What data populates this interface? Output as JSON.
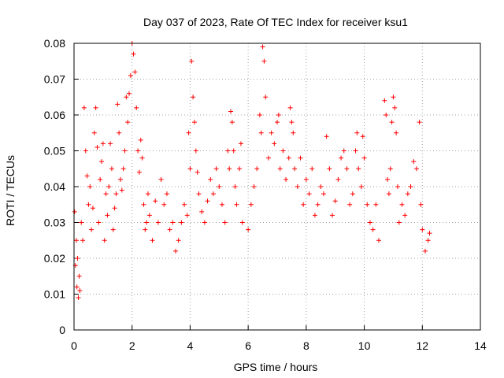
{
  "chart_data": {
    "type": "scatter",
    "title": "Day 037 of 2023, Rate Of TEC Index for receiver ksu1",
    "xlabel": "GPS time / hours",
    "ylabel": "ROTI / TECUs",
    "xlim": [
      0,
      14
    ],
    "ylim": [
      0,
      0.08
    ],
    "grid": true,
    "marker": "+",
    "x_ticks": [
      "0",
      "2",
      "4",
      "6",
      "8",
      "10",
      "12",
      "14"
    ],
    "y_ticks": [
      "0",
      "0.01",
      "0.02",
      "0.03",
      "0.04",
      "0.05",
      "0.06",
      "0.07",
      "0.08"
    ],
    "x_tick_values": [
      0,
      2,
      4,
      6,
      8,
      10,
      12,
      14
    ],
    "y_tick_values": [
      0,
      0.01,
      0.02,
      0.03,
      0.04,
      0.05,
      0.06,
      0.07,
      0.08
    ],
    "series": [
      {
        "color": "#ff0000",
        "points": [
          [
            0.02,
            0.033
          ],
          [
            0.05,
            0.018
          ],
          [
            0.08,
            0.025
          ],
          [
            0.1,
            0.012
          ],
          [
            0.12,
            0.02
          ],
          [
            0.15,
            0.009
          ],
          [
            0.18,
            0.015
          ],
          [
            0.2,
            0.011
          ],
          [
            0.25,
            0.03
          ],
          [
            0.3,
            0.025
          ],
          [
            0.35,
            0.062
          ],
          [
            0.4,
            0.05
          ],
          [
            0.45,
            0.043
          ],
          [
            0.5,
            0.035
          ],
          [
            0.55,
            0.04
          ],
          [
            0.6,
            0.028
          ],
          [
            0.65,
            0.034
          ],
          [
            0.7,
            0.055
          ],
          [
            0.75,
            0.062
          ],
          [
            0.8,
            0.051
          ],
          [
            0.85,
            0.03
          ],
          [
            0.9,
            0.042
          ],
          [
            0.95,
            0.047
          ],
          [
            1.0,
            0.052
          ],
          [
            1.05,
            0.025
          ],
          [
            1.1,
            0.038
          ],
          [
            1.15,
            0.032
          ],
          [
            1.2,
            0.04
          ],
          [
            1.25,
            0.052
          ],
          [
            1.3,
            0.045
          ],
          [
            1.35,
            0.028
          ],
          [
            1.4,
            0.034
          ],
          [
            1.45,
            0.038
          ],
          [
            1.5,
            0.063
          ],
          [
            1.55,
            0.055
          ],
          [
            1.6,
            0.042
          ],
          [
            1.65,
            0.039
          ],
          [
            1.7,
            0.045
          ],
          [
            1.75,
            0.05
          ],
          [
            1.8,
            0.065
          ],
          [
            1.85,
            0.058
          ],
          [
            1.9,
            0.066
          ],
          [
            1.95,
            0.071
          ],
          [
            2.0,
            0.08
          ],
          [
            2.05,
            0.077
          ],
          [
            2.1,
            0.072
          ],
          [
            2.15,
            0.062
          ],
          [
            2.2,
            0.05
          ],
          [
            2.25,
            0.044
          ],
          [
            2.3,
            0.053
          ],
          [
            2.35,
            0.048
          ],
          [
            2.4,
            0.035
          ],
          [
            2.45,
            0.028
          ],
          [
            2.5,
            0.03
          ],
          [
            2.55,
            0.038
          ],
          [
            2.6,
            0.032
          ],
          [
            2.7,
            0.025
          ],
          [
            2.8,
            0.036
          ],
          [
            2.9,
            0.03
          ],
          [
            3.0,
            0.042
          ],
          [
            3.1,
            0.035
          ],
          [
            3.2,
            0.038
          ],
          [
            3.3,
            0.028
          ],
          [
            3.4,
            0.03
          ],
          [
            3.5,
            0.022
          ],
          [
            3.6,
            0.025
          ],
          [
            3.7,
            0.03
          ],
          [
            3.8,
            0.035
          ],
          [
            3.9,
            0.032
          ],
          [
            3.95,
            0.055
          ],
          [
            4.0,
            0.045
          ],
          [
            4.05,
            0.075
          ],
          [
            4.1,
            0.065
          ],
          [
            4.15,
            0.058
          ],
          [
            4.2,
            0.05
          ],
          [
            4.25,
            0.044
          ],
          [
            4.3,
            0.038
          ],
          [
            4.4,
            0.033
          ],
          [
            4.5,
            0.03
          ],
          [
            4.6,
            0.036
          ],
          [
            4.7,
            0.042
          ],
          [
            4.8,
            0.038
          ],
          [
            4.9,
            0.045
          ],
          [
            5.0,
            0.04
          ],
          [
            5.1,
            0.035
          ],
          [
            5.2,
            0.03
          ],
          [
            5.3,
            0.05
          ],
          [
            5.35,
            0.045
          ],
          [
            5.4,
            0.061
          ],
          [
            5.45,
            0.058
          ],
          [
            5.5,
            0.05
          ],
          [
            5.55,
            0.04
          ],
          [
            5.6,
            0.035
          ],
          [
            5.7,
            0.045
          ],
          [
            5.75,
            0.052
          ],
          [
            5.8,
            0.03
          ],
          [
            6.0,
            0.028
          ],
          [
            6.1,
            0.035
          ],
          [
            6.2,
            0.04
          ],
          [
            6.3,
            0.045
          ],
          [
            6.4,
            0.06
          ],
          [
            6.45,
            0.055
          ],
          [
            6.5,
            0.079
          ],
          [
            6.55,
            0.075
          ],
          [
            6.6,
            0.065
          ],
          [
            6.7,
            0.048
          ],
          [
            6.8,
            0.055
          ],
          [
            6.9,
            0.052
          ],
          [
            7.0,
            0.058
          ],
          [
            7.05,
            0.06
          ],
          [
            7.1,
            0.045
          ],
          [
            7.2,
            0.05
          ],
          [
            7.3,
            0.042
          ],
          [
            7.4,
            0.048
          ],
          [
            7.45,
            0.062
          ],
          [
            7.5,
            0.058
          ],
          [
            7.55,
            0.055
          ],
          [
            7.6,
            0.045
          ],
          [
            7.7,
            0.04
          ],
          [
            7.8,
            0.048
          ],
          [
            7.9,
            0.035
          ],
          [
            8.0,
            0.042
          ],
          [
            8.1,
            0.038
          ],
          [
            8.2,
            0.045
          ],
          [
            8.3,
            0.032
          ],
          [
            8.4,
            0.035
          ],
          [
            8.5,
            0.04
          ],
          [
            8.6,
            0.038
          ],
          [
            8.7,
            0.054
          ],
          [
            8.8,
            0.045
          ],
          [
            8.9,
            0.032
          ],
          [
            9.0,
            0.036
          ],
          [
            9.1,
            0.042
          ],
          [
            9.2,
            0.048
          ],
          [
            9.3,
            0.05
          ],
          [
            9.4,
            0.045
          ],
          [
            9.5,
            0.035
          ],
          [
            9.6,
            0.038
          ],
          [
            9.7,
            0.05
          ],
          [
            9.75,
            0.055
          ],
          [
            9.8,
            0.045
          ],
          [
            9.9,
            0.04
          ],
          [
            9.95,
            0.054
          ],
          [
            10.0,
            0.048
          ],
          [
            10.1,
            0.035
          ],
          [
            10.2,
            0.03
          ],
          [
            10.3,
            0.028
          ],
          [
            10.4,
            0.035
          ],
          [
            10.5,
            0.025
          ],
          [
            10.7,
            0.064
          ],
          [
            10.75,
            0.06
          ],
          [
            10.8,
            0.042
          ],
          [
            10.85,
            0.038
          ],
          [
            10.9,
            0.045
          ],
          [
            10.95,
            0.058
          ],
          [
            11.0,
            0.065
          ],
          [
            11.05,
            0.062
          ],
          [
            11.1,
            0.055
          ],
          [
            11.15,
            0.04
          ],
          [
            11.2,
            0.03
          ],
          [
            11.3,
            0.035
          ],
          [
            11.4,
            0.032
          ],
          [
            11.5,
            0.038
          ],
          [
            11.6,
            0.04
          ],
          [
            11.7,
            0.047
          ],
          [
            11.8,
            0.045
          ],
          [
            11.9,
            0.058
          ],
          [
            11.95,
            0.035
          ],
          [
            12.0,
            0.028
          ],
          [
            12.1,
            0.022
          ],
          [
            12.2,
            0.025
          ],
          [
            12.25,
            0.027
          ]
        ]
      }
    ]
  }
}
